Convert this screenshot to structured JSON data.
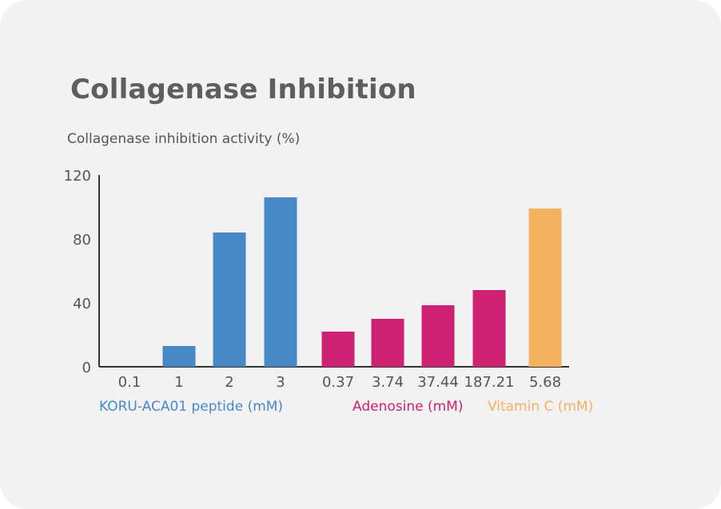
{
  "chart_data": {
    "type": "bar",
    "title": "Collagenase Inhibition",
    "ylabel": "Collagenase inhibition activity (%)",
    "ylim": [
      0,
      120
    ],
    "yticks": [
      0,
      40,
      80,
      120
    ],
    "grid": false,
    "categories": [
      "0.1",
      "1",
      "2",
      "3",
      "0.37",
      "3.74",
      "37.44",
      "187.21",
      "5.68"
    ],
    "values": [
      0,
      13,
      84,
      106,
      22,
      30,
      38.5,
      48,
      99
    ],
    "groups": [
      {
        "label": "KORU-ACA01 peptide (mM)",
        "color": "#4788c7",
        "indices": [
          0,
          1,
          2,
          3
        ]
      },
      {
        "label": "Adenosine (mM)",
        "color": "#ce2275",
        "indices": [
          4,
          5,
          6,
          7
        ]
      },
      {
        "label": "Vitamin C (mM)",
        "color": "#f3b25f",
        "indices": [
          8
        ]
      }
    ]
  }
}
